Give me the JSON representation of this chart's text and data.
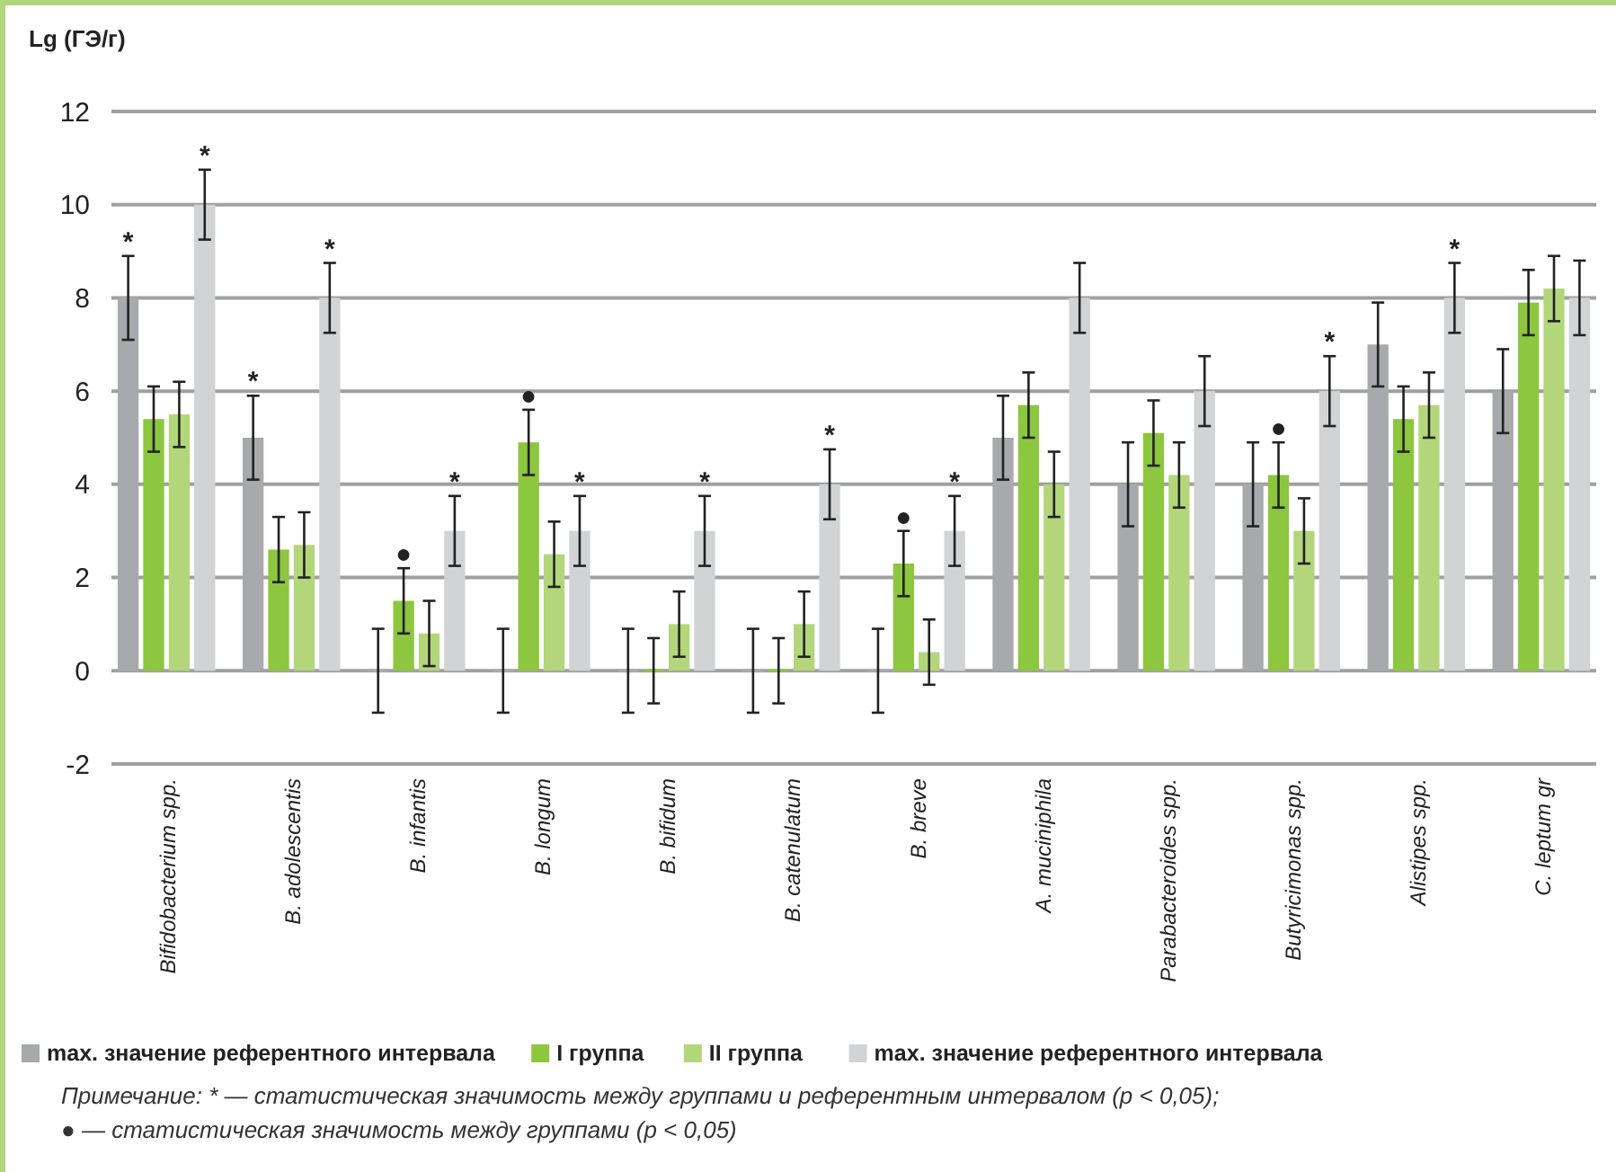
{
  "chart_data": {
    "type": "bar",
    "ylabel": "Lg (ГЭ/г)",
    "categories": [
      "Bifidobacterium spp.",
      "B. adolescentis",
      "B. infantis",
      "B. longum",
      "B. bifidum",
      "B. catenulatum",
      "B. breve",
      "A. muciniphila",
      "Parabacteroides spp.",
      "Butyricimonas spp.",
      "Alistipes spp.",
      "C. leptum gr"
    ],
    "series": [
      {
        "name": "max. значение референтного интервала",
        "color": "#a7a9ac",
        "values": [
          8,
          5,
          0,
          0,
          0,
          0,
          0,
          5,
          4,
          4,
          7,
          6
        ],
        "errors": [
          0.9,
          0.9,
          0.9,
          0.9,
          0.9,
          0.9,
          0.9,
          0.9,
          0.9,
          0.9,
          0.9,
          0.9
        ],
        "value_labels": [
          "*",
          "*",
          null,
          null,
          null,
          null,
          null,
          null,
          null,
          null,
          null,
          null
        ]
      },
      {
        "name": "I группа",
        "color": "#8dc63f",
        "values": [
          5.4,
          2.6,
          1.5,
          4.9,
          0,
          0,
          2.3,
          5.7,
          5.1,
          4.2,
          5.4,
          7.9
        ],
        "errors": [
          0.7,
          0.7,
          0.7,
          0.7,
          0.7,
          0.7,
          0.7,
          0.7,
          0.7,
          0.7,
          0.7,
          0.7
        ],
        "value_labels": [
          null,
          null,
          "●",
          "●",
          null,
          null,
          "●",
          null,
          null,
          "●",
          null,
          null
        ]
      },
      {
        "name": "II группа",
        "color": "#b3d67a",
        "values": [
          5.5,
          2.7,
          0.8,
          2.5,
          1,
          1,
          0.4,
          4,
          4.2,
          3,
          5.7,
          8.2
        ],
        "errors": [
          0.7,
          0.7,
          0.7,
          0.7,
          0.7,
          0.7,
          0.7,
          0.7,
          0.7,
          0.7,
          0.7,
          0.7
        ],
        "value_labels": [
          null,
          null,
          null,
          null,
          null,
          null,
          null,
          null,
          null,
          null,
          null,
          null
        ]
      },
      {
        "name": "max. значение референтного интервала",
        "color": "#d1d3d4",
        "values": [
          10,
          8,
          3,
          3,
          3,
          4,
          3,
          8,
          6,
          6,
          8,
          8
        ],
        "errors": [
          0.75,
          0.75,
          0.75,
          0.75,
          0.75,
          0.75,
          0.75,
          0.75,
          0.75,
          0.75,
          0.75,
          0.8
        ],
        "value_labels": [
          "*",
          "*",
          "*",
          "*",
          "*",
          "*",
          "*",
          null,
          null,
          "*",
          "*",
          null
        ]
      }
    ],
    "ylim": [
      -2,
      12
    ],
    "yticks": [
      -2,
      0,
      2,
      4,
      6,
      8,
      10,
      12
    ],
    "grid": "y",
    "legend": "bottom",
    "annotations": [
      "Примечание: * — статистическая значимость между группами и референтным интервалом (p < 0,05);",
      "● — статистическая значимость между группами (p < 0,05)"
    ]
  }
}
